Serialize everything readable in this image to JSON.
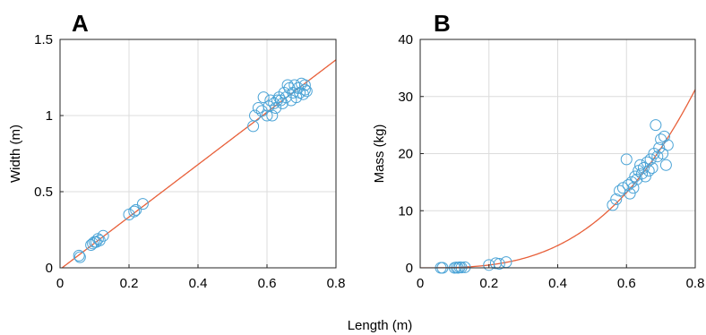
{
  "figure": {
    "shared_xlabel": "Length (m)",
    "colors": {
      "points": "#4aa3d6",
      "fit": "#e8603a",
      "grid": "#dcdcdc",
      "axes": "#262626"
    }
  },
  "chart_data": [
    {
      "panel": "A",
      "type": "scatter",
      "ylabel": "Width (m)",
      "xlim": [
        0,
        0.8
      ],
      "ylim": [
        0,
        1.5
      ],
      "xticks": [
        "0",
        "0.2",
        "0.4",
        "0.6",
        "0.8"
      ],
      "yticks": [
        "0",
        "0.5",
        "1",
        "1.5"
      ],
      "grid": true,
      "points": {
        "x": [
          0.055,
          0.058,
          0.09,
          0.095,
          0.1,
          0.105,
          0.11,
          0.115,
          0.125,
          0.2,
          0.215,
          0.22,
          0.24,
          0.56,
          0.565,
          0.575,
          0.585,
          0.59,
          0.6,
          0.605,
          0.61,
          0.615,
          0.62,
          0.625,
          0.63,
          0.635,
          0.64,
          0.645,
          0.65,
          0.655,
          0.66,
          0.665,
          0.67,
          0.675,
          0.68,
          0.685,
          0.69,
          0.695,
          0.7,
          0.705,
          0.71,
          0.71,
          0.715
        ],
        "y": [
          0.08,
          0.07,
          0.15,
          0.16,
          0.17,
          0.17,
          0.19,
          0.18,
          0.21,
          0.35,
          0.37,
          0.38,
          0.42,
          0.93,
          1.0,
          1.05,
          1.03,
          1.12,
          1.0,
          1.06,
          1.1,
          1.0,
          1.08,
          1.05,
          1.1,
          1.12,
          1.1,
          1.08,
          1.15,
          1.12,
          1.2,
          1.18,
          1.1,
          1.15,
          1.2,
          1.12,
          1.18,
          1.15,
          1.21,
          1.14,
          1.17,
          1.2,
          1.16
        ]
      },
      "fit": {
        "type": "linear",
        "slope": 1.72,
        "intercept": -0.01
      }
    },
    {
      "panel": "B",
      "type": "scatter",
      "ylabel": "Mass (kg)",
      "xlim": [
        0,
        0.8
      ],
      "ylim": [
        0,
        40
      ],
      "xticks": [
        "0",
        "0.2",
        "0.4",
        "0.6",
        "0.8"
      ],
      "yticks": [
        "0",
        "10",
        "20",
        "30",
        "40"
      ],
      "grid": true,
      "points": {
        "x": [
          0.06,
          0.065,
          0.1,
          0.105,
          0.11,
          0.115,
          0.12,
          0.13,
          0.2,
          0.22,
          0.23,
          0.25,
          0.56,
          0.57,
          0.58,
          0.59,
          0.6,
          0.605,
          0.61,
          0.615,
          0.62,
          0.625,
          0.63,
          0.635,
          0.64,
          0.645,
          0.65,
          0.655,
          0.66,
          0.665,
          0.67,
          0.675,
          0.68,
          0.685,
          0.69,
          0.695,
          0.7,
          0.705,
          0.71,
          0.715,
          0.72
        ],
        "y": [
          0.0,
          0.0,
          0.0,
          0.05,
          0.0,
          0.1,
          0.05,
          0.1,
          0.5,
          0.8,
          0.7,
          1.0,
          11.0,
          12.0,
          13.5,
          14.0,
          19.0,
          14.5,
          13.0,
          15.0,
          14.0,
          16.0,
          15.5,
          17.0,
          18.0,
          16.5,
          17.5,
          16.0,
          18.5,
          17.0,
          19.0,
          17.5,
          20.0,
          25.0,
          19.5,
          21.0,
          22.5,
          20.0,
          23.0,
          18.0,
          21.5
        ]
      },
      "fit": {
        "type": "power",
        "a": 61,
        "b": 3
      }
    }
  ]
}
